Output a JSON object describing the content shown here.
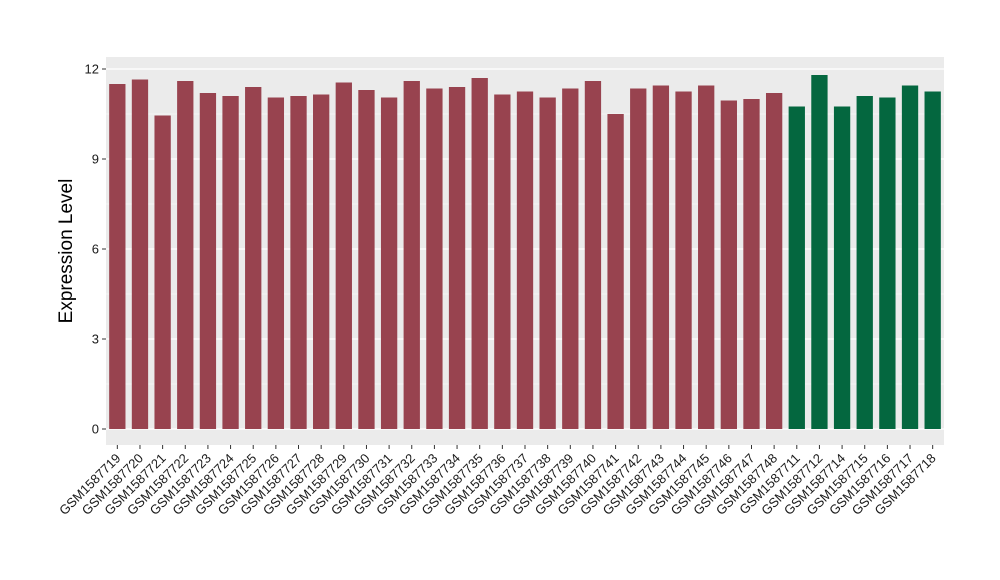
{
  "chart_data": {
    "type": "bar",
    "title": "",
    "xlabel": "",
    "ylabel": "Expression Level",
    "ylim": [
      0,
      12.4
    ],
    "yticks": [
      0,
      3,
      6,
      9,
      12
    ],
    "grid": true,
    "legend": "none",
    "colors": {
      "group_a": "#98434f",
      "group_b": "#04673f",
      "panel": "#ebebeb",
      "gridline": "#ffffff"
    },
    "categories": [
      "GSM1587719",
      "GSM1587720",
      "GSM1587721",
      "GSM1587722",
      "GSM1587723",
      "GSM1587724",
      "GSM1587725",
      "GSM1587726",
      "GSM1587727",
      "GSM1587728",
      "GSM1587729",
      "GSM1587730",
      "GSM1587731",
      "GSM1587732",
      "GSM1587733",
      "GSM1587734",
      "GSM1587735",
      "GSM1587736",
      "GSM1587737",
      "GSM1587738",
      "GSM1587739",
      "GSM1587740",
      "GSM1587741",
      "GSM1587742",
      "GSM1587743",
      "GSM1587744",
      "GSM1587745",
      "GSM1587746",
      "GSM1587747",
      "GSM1587748",
      "GSM1587711",
      "GSM1587712",
      "GSM1587714",
      "GSM1587715",
      "GSM1587716",
      "GSM1587717",
      "GSM1587718"
    ],
    "values": [
      11.5,
      11.65,
      10.45,
      11.6,
      11.2,
      11.1,
      11.4,
      11.05,
      11.1,
      11.15,
      11.55,
      11.3,
      11.05,
      11.6,
      11.35,
      11.4,
      11.7,
      11.15,
      11.25,
      11.05,
      11.35,
      11.6,
      10.5,
      11.35,
      11.45,
      11.25,
      11.45,
      10.95,
      11.0,
      11.2,
      10.75,
      11.8,
      10.75,
      11.1,
      11.05,
      11.45,
      11.25
    ],
    "groups": [
      "a",
      "a",
      "a",
      "a",
      "a",
      "a",
      "a",
      "a",
      "a",
      "a",
      "a",
      "a",
      "a",
      "a",
      "a",
      "a",
      "a",
      "a",
      "a",
      "a",
      "a",
      "a",
      "a",
      "a",
      "a",
      "a",
      "a",
      "a",
      "a",
      "a",
      "b",
      "b",
      "b",
      "b",
      "b",
      "b",
      "b"
    ]
  }
}
